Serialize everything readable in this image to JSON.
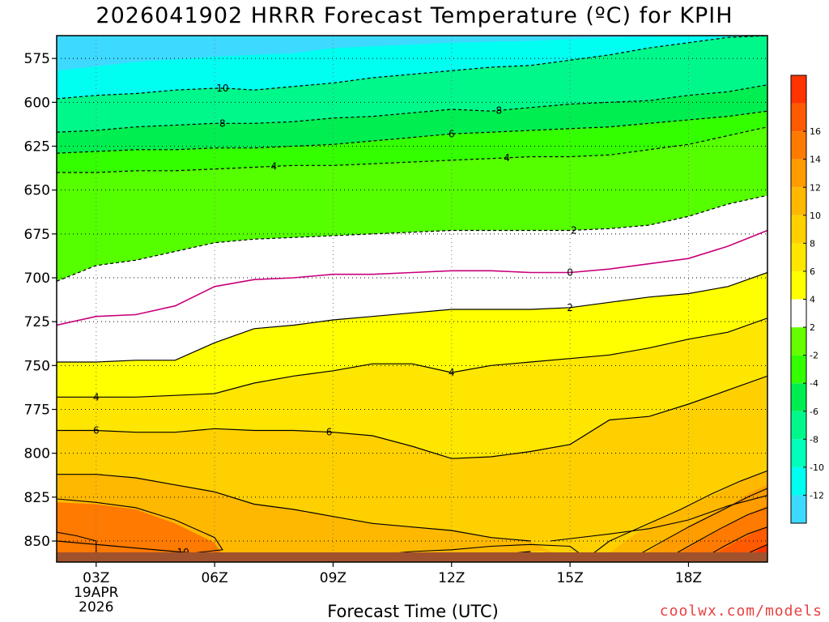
{
  "title": "2026041902 HRRR Forecast Temperature (ºC) for KPIH",
  "source_text": "coolwx.com/models",
  "chart_data": {
    "type": "contour",
    "variable": "Temperature (ºC)",
    "title": "2026041902 HRRR Forecast Temperature (ºC) for KPIH",
    "xlabel": "Forecast Time (UTC)",
    "ylabel": "",
    "x_ticks": [
      "03Z",
      "06Z",
      "09Z",
      "12Z",
      "15Z",
      "18Z"
    ],
    "x_hours": [
      3,
      6,
      9,
      12,
      15,
      18
    ],
    "x_first_label_extra": [
      "19APR",
      "2026"
    ],
    "xlim": [
      2,
      20
    ],
    "y_ticks": [
      575,
      600,
      625,
      650,
      675,
      700,
      725,
      750,
      775,
      800,
      825,
      850
    ],
    "ylim": [
      862,
      562
    ],
    "y_axis": "pressure (hPa), decreasing upward",
    "grid": "dotted",
    "surface_terrain": true,
    "colorbar": {
      "levels": [
        -14,
        -12,
        -10,
        -8,
        -6,
        -4,
        -2,
        2,
        4,
        6,
        8,
        10,
        12,
        14,
        16,
        18
      ],
      "colors": [
        "#3dd9ff",
        "#00fff0",
        "#00ffbb",
        "#00f88a",
        "#00ee50",
        "#33ff00",
        "#66ff00",
        "#ffffff",
        "#ffff00",
        "#ffe600",
        "#ffd000",
        "#ffb800",
        "#ff9c00",
        "#ff7a00",
        "#ff5a00",
        "#ff3300"
      ],
      "labels": [
        "-12",
        "-10",
        "-8",
        "-6",
        "-4",
        "-2",
        "2",
        "4",
        "6",
        "8",
        "10",
        "12",
        "14",
        "16"
      ]
    },
    "isotherms": [
      {
        "value": -10,
        "label": "10",
        "points": [
          [
            2,
            598
          ],
          [
            3,
            596
          ],
          [
            4,
            595
          ],
          [
            5,
            593
          ],
          [
            6,
            592
          ],
          [
            6.3,
            592
          ],
          [
            7,
            593
          ],
          [
            8,
            591
          ],
          [
            9,
            589
          ],
          [
            10,
            586
          ],
          [
            11,
            584
          ],
          [
            12,
            582
          ],
          [
            13,
            580
          ],
          [
            14,
            579
          ],
          [
            15,
            576
          ],
          [
            16,
            573
          ],
          [
            17,
            569
          ],
          [
            18,
            566
          ],
          [
            19,
            563
          ],
          [
            20,
            562
          ]
        ]
      },
      {
        "value": -8,
        "label": "8",
        "points": [
          [
            2,
            617
          ],
          [
            3,
            616
          ],
          [
            4,
            614
          ],
          [
            5,
            613
          ],
          [
            6,
            612
          ],
          [
            7,
            612
          ],
          [
            8,
            611
          ],
          [
            9,
            609
          ],
          [
            10,
            608
          ],
          [
            11,
            606
          ],
          [
            12,
            604
          ],
          [
            13,
            605
          ],
          [
            14,
            603
          ],
          [
            15,
            601
          ],
          [
            16,
            600
          ],
          [
            17,
            599
          ],
          [
            18,
            596
          ],
          [
            19,
            594
          ],
          [
            20,
            590
          ]
        ]
      },
      {
        "value": -6,
        "label": "6",
        "points": [
          [
            2,
            629
          ],
          [
            3,
            628
          ],
          [
            4,
            627
          ],
          [
            5,
            627
          ],
          [
            6,
            626
          ],
          [
            7,
            626
          ],
          [
            8,
            625
          ],
          [
            9,
            624
          ],
          [
            10,
            622
          ],
          [
            11,
            620
          ],
          [
            12,
            618
          ],
          [
            13,
            617
          ],
          [
            14,
            616
          ],
          [
            15,
            615
          ],
          [
            16,
            614
          ],
          [
            17,
            612
          ],
          [
            18,
            610
          ],
          [
            19,
            608
          ],
          [
            20,
            605
          ]
        ]
      },
      {
        "value": -4,
        "label": "4",
        "points": [
          [
            2,
            640
          ],
          [
            3,
            640
          ],
          [
            4,
            639
          ],
          [
            5,
            639
          ],
          [
            6,
            638
          ],
          [
            7,
            637
          ],
          [
            8,
            636
          ],
          [
            9,
            636
          ],
          [
            10,
            635
          ],
          [
            11,
            634
          ],
          [
            12,
            633
          ],
          [
            13,
            632
          ],
          [
            14,
            631
          ],
          [
            15,
            631
          ],
          [
            16,
            630
          ],
          [
            17,
            627
          ],
          [
            18,
            624
          ],
          [
            19,
            619
          ],
          [
            20,
            614
          ]
        ]
      },
      {
        "value": -2,
        "label": "2",
        "points": [
          [
            2,
            702
          ],
          [
            3,
            693
          ],
          [
            4,
            690
          ],
          [
            5,
            685
          ],
          [
            6,
            680
          ],
          [
            7,
            678
          ],
          [
            8,
            677
          ],
          [
            9,
            676
          ],
          [
            10,
            675
          ],
          [
            11,
            674
          ],
          [
            12,
            673
          ],
          [
            13,
            673
          ],
          [
            14,
            673
          ],
          [
            15,
            673
          ],
          [
            16,
            672
          ],
          [
            17,
            670
          ],
          [
            18,
            665
          ],
          [
            19,
            658
          ],
          [
            20,
            653
          ]
        ]
      },
      {
        "value": 0,
        "label": "0",
        "points": [
          [
            2,
            727
          ],
          [
            3,
            722
          ],
          [
            4,
            721
          ],
          [
            5,
            716
          ],
          [
            6,
            705
          ],
          [
            7,
            701
          ],
          [
            8,
            700
          ],
          [
            9,
            698
          ],
          [
            10,
            698
          ],
          [
            11,
            697
          ],
          [
            12,
            696
          ],
          [
            13,
            696
          ],
          [
            14,
            697
          ],
          [
            15,
            697
          ],
          [
            16,
            695
          ],
          [
            17,
            692
          ],
          [
            18,
            689
          ],
          [
            19,
            682
          ],
          [
            20,
            673
          ]
        ]
      },
      {
        "value": 2,
        "label": "2",
        "points": [
          [
            2,
            748
          ],
          [
            3,
            748
          ],
          [
            4,
            747
          ],
          [
            5,
            747
          ],
          [
            6,
            737
          ],
          [
            7,
            729
          ],
          [
            8,
            727
          ],
          [
            9,
            724
          ],
          [
            10,
            722
          ],
          [
            11,
            720
          ],
          [
            12,
            718
          ],
          [
            13,
            718
          ],
          [
            14,
            718
          ],
          [
            15,
            717
          ],
          [
            16,
            714
          ],
          [
            17,
            711
          ],
          [
            18,
            709
          ],
          [
            19,
            705
          ],
          [
            20,
            697
          ]
        ]
      },
      {
        "value": 4,
        "label": "4",
        "points": [
          [
            2,
            768
          ],
          [
            3,
            768
          ],
          [
            4,
            768
          ],
          [
            5,
            767
          ],
          [
            6,
            766
          ],
          [
            7,
            760
          ],
          [
            8,
            756
          ],
          [
            9,
            753
          ],
          [
            10,
            749
          ],
          [
            11,
            749
          ],
          [
            12,
            754
          ],
          [
            13,
            750
          ],
          [
            14,
            748
          ],
          [
            15,
            746
          ],
          [
            16,
            744
          ],
          [
            17,
            740
          ],
          [
            18,
            735
          ],
          [
            19,
            731
          ],
          [
            20,
            723
          ]
        ]
      },
      {
        "value": 6,
        "label": "6",
        "points": [
          [
            2,
            787
          ],
          [
            3,
            787
          ],
          [
            4,
            788
          ],
          [
            5,
            788
          ],
          [
            6,
            786
          ],
          [
            7,
            787
          ],
          [
            8,
            787
          ],
          [
            9,
            788
          ],
          [
            10,
            790
          ],
          [
            11,
            796
          ],
          [
            12,
            803
          ],
          [
            13,
            802
          ],
          [
            14,
            799
          ],
          [
            15,
            795
          ],
          [
            16,
            781
          ],
          [
            17,
            779
          ],
          [
            18,
            772
          ],
          [
            19,
            764
          ],
          [
            20,
            756
          ]
        ]
      },
      {
        "value": 8,
        "label": "",
        "points": [
          [
            2,
            812
          ],
          [
            3,
            812
          ],
          [
            4,
            814
          ],
          [
            5,
            818
          ],
          [
            6,
            822
          ],
          [
            7,
            829
          ],
          [
            8,
            832
          ],
          [
            9,
            836
          ],
          [
            10,
            840
          ],
          [
            11,
            842
          ],
          [
            12,
            844
          ],
          [
            13,
            848
          ],
          [
            14,
            850
          ]
        ]
      },
      {
        "value": 10,
        "label": "10",
        "points": [
          [
            2,
            850
          ],
          [
            3,
            852
          ],
          [
            4,
            854
          ],
          [
            5,
            856
          ],
          [
            6,
            858
          ],
          [
            7,
            859
          ],
          [
            8,
            860
          ],
          [
            9,
            860
          ],
          [
            10,
            860
          ],
          [
            11,
            860
          ],
          [
            12,
            860
          ],
          [
            13,
            858
          ],
          [
            14,
            856
          ]
        ]
      }
    ]
  }
}
